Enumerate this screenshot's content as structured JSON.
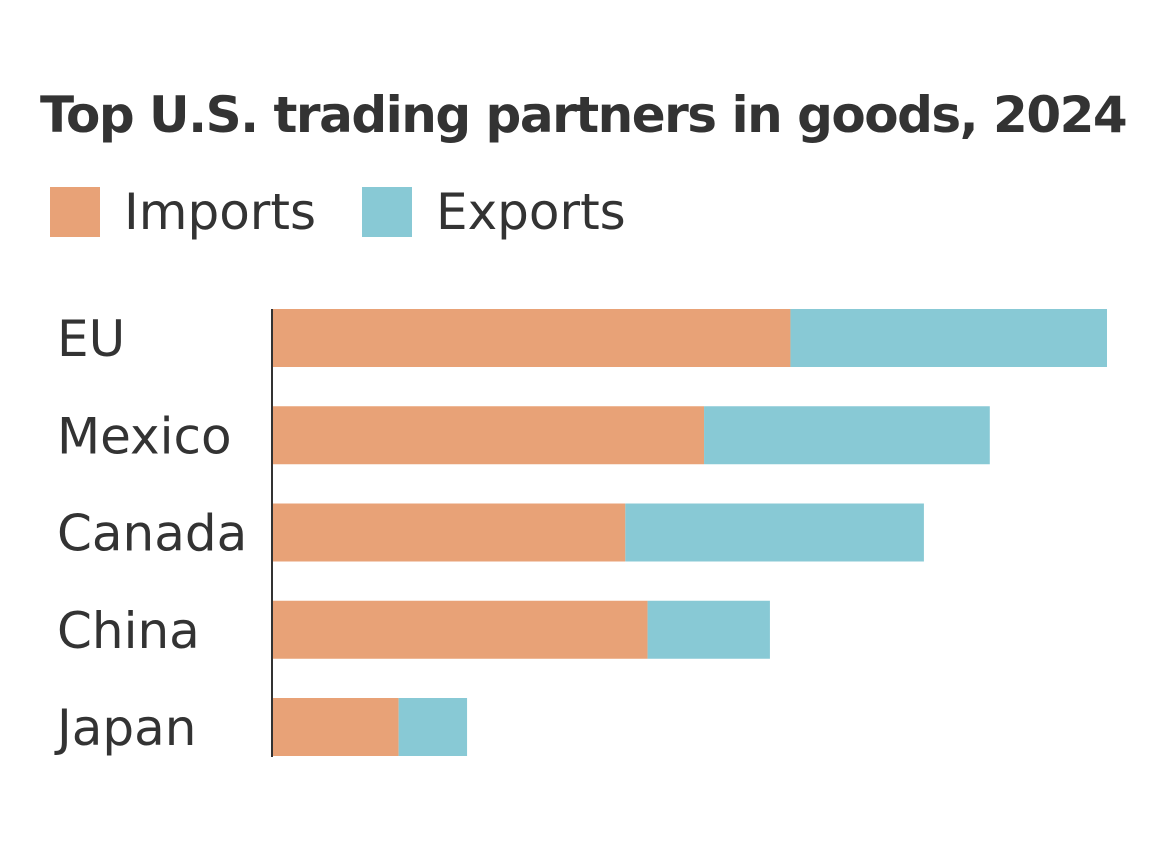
{
  "chart_data": {
    "type": "bar",
    "orientation": "horizontal",
    "stacked": true,
    "title": "Top U.S. trading partners in goods, 2024",
    "categories": [
      "EU",
      "Mexico",
      "Canada",
      "China",
      "Japan"
    ],
    "series": [
      {
        "name": "Imports",
        "color": "#e8a277",
        "values": [
          606,
          505,
          413,
          439,
          148
        ]
      },
      {
        "name": "Exports",
        "color": "#88c9d5",
        "values": [
          370,
          334,
          349,
          143,
          80
        ]
      }
    ],
    "xlim": [
      0,
      976
    ],
    "grid": false,
    "legend": "top-left"
  }
}
